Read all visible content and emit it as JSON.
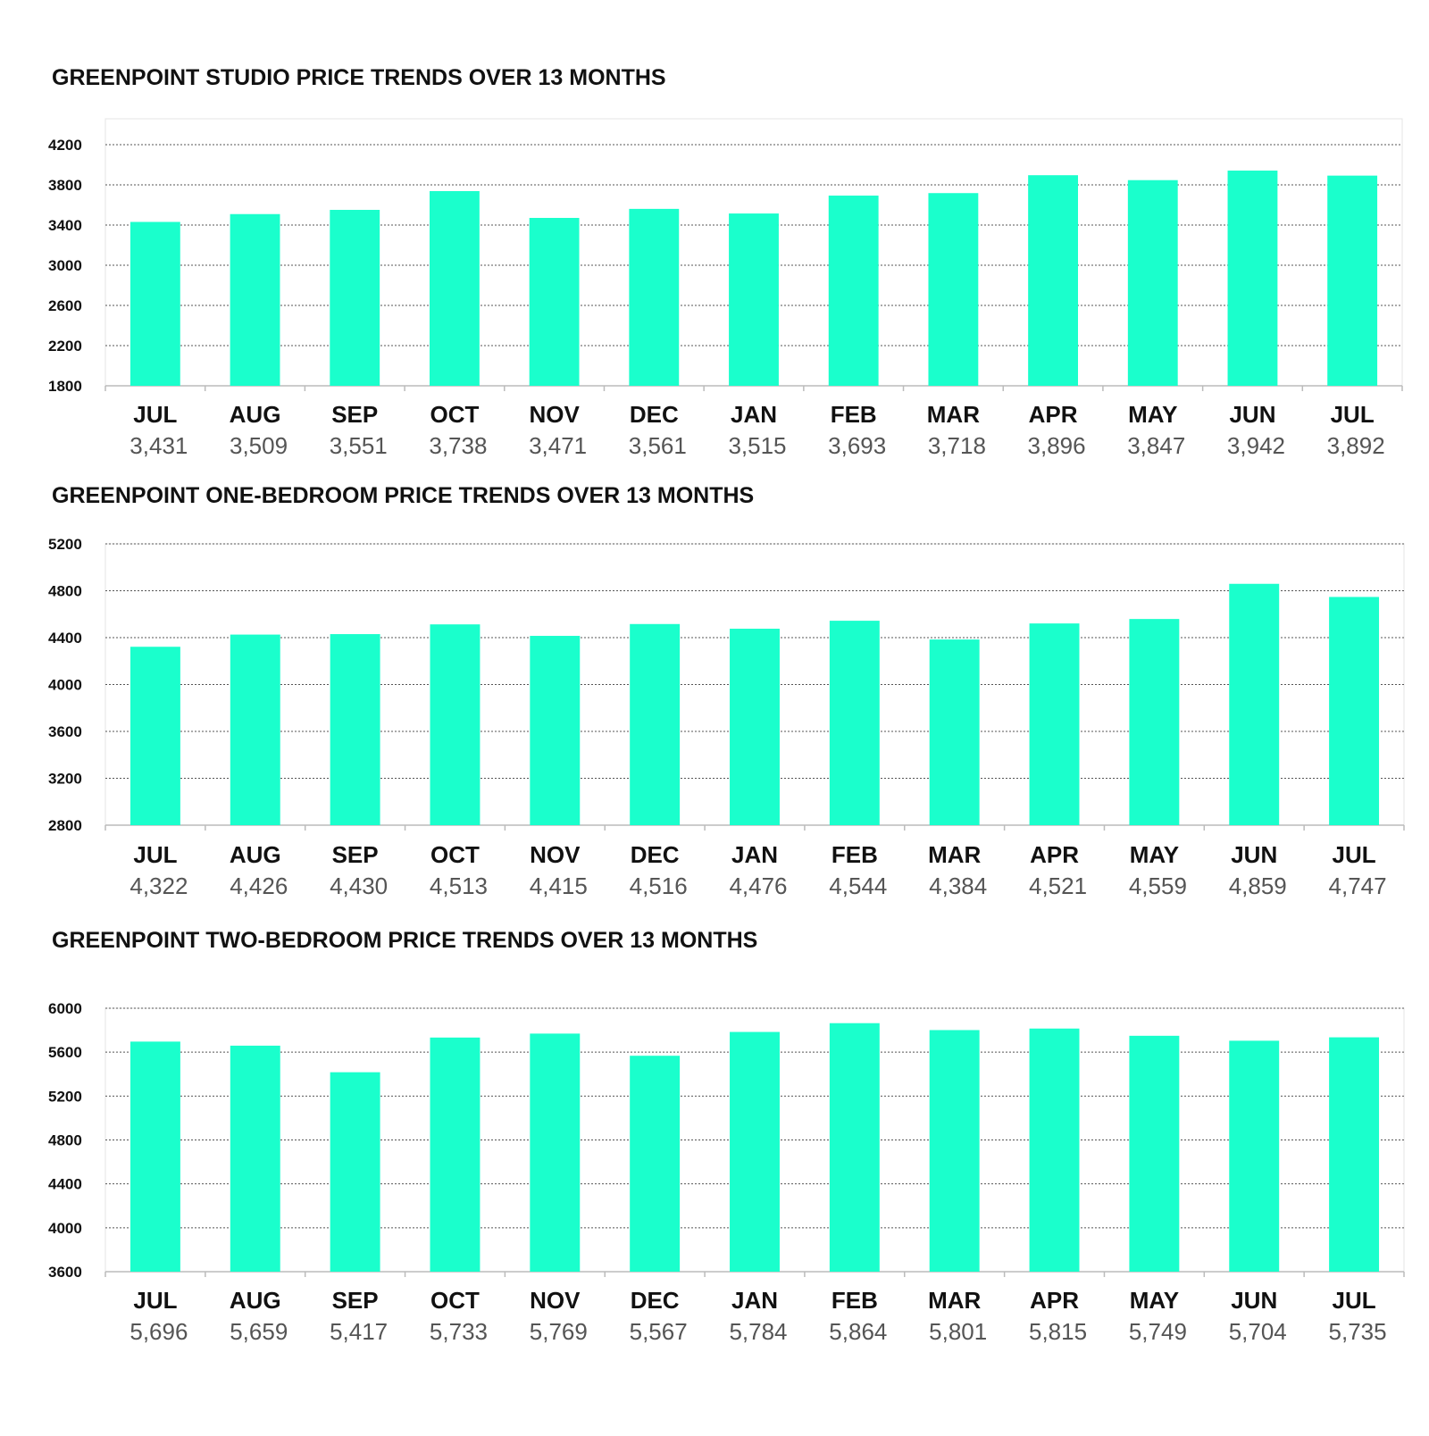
{
  "bar_color": "#1affcc",
  "grid_color": "#555555",
  "axis_color": "#bbbbbb",
  "chart_data": [
    {
      "type": "bar",
      "title": "GREENPOINT STUDIO PRICE TRENDS OVER 13 MONTHS",
      "categories": [
        "JUL",
        "AUG",
        "SEP",
        "OCT",
        "NOV",
        "DEC",
        "JAN",
        "FEB",
        "MAR",
        "APR",
        "MAY",
        "JUN",
        "JUL"
      ],
      "values": [
        3431,
        3509,
        3551,
        3738,
        3471,
        3561,
        3515,
        3693,
        3718,
        3896,
        3847,
        3942,
        3892
      ],
      "value_labels": [
        "3,431",
        "3,509",
        "3,551",
        "3,738",
        "3,471",
        "3,561",
        "3,515",
        "3,693",
        "3,718",
        "3,896",
        "3,847",
        "3,942",
        "3,892"
      ],
      "yticks": [
        1800,
        2200,
        2600,
        3000,
        3400,
        3800,
        4200
      ],
      "ylim": [
        1800,
        4200
      ],
      "grid": true
    },
    {
      "type": "bar",
      "title": "GREENPOINT ONE-BEDROOM PRICE TRENDS OVER 13 MONTHS",
      "categories": [
        "JUL",
        "AUG",
        "SEP",
        "OCT",
        "NOV",
        "DEC",
        "JAN",
        "FEB",
        "MAR",
        "APR",
        "MAY",
        "JUN",
        "JUL"
      ],
      "values": [
        4322,
        4426,
        4430,
        4513,
        4415,
        4516,
        4476,
        4544,
        4384,
        4521,
        4559,
        4859,
        4747
      ],
      "value_labels": [
        "4,322",
        "4,426",
        "4,430",
        "4,513",
        "4,415",
        "4,516",
        "4,476",
        "4,544",
        "4,384",
        "4,521",
        "4,559",
        "4,859",
        "4,747"
      ],
      "yticks": [
        2800,
        3200,
        3600,
        4000,
        4400,
        4800,
        5200
      ],
      "ylim": [
        2800,
        5200
      ],
      "grid": true
    },
    {
      "type": "bar",
      "title": "GREENPOINT TWO-BEDROOM PRICE TRENDS OVER 13 MONTHS",
      "categories": [
        "JUL",
        "AUG",
        "SEP",
        "OCT",
        "NOV",
        "DEC",
        "JAN",
        "FEB",
        "MAR",
        "APR",
        "MAY",
        "JUN",
        "JUL"
      ],
      "values": [
        5696,
        5659,
        5417,
        5733,
        5769,
        5567,
        5784,
        5864,
        5801,
        5815,
        5749,
        5704,
        5735
      ],
      "value_labels": [
        "5,696",
        "5,659",
        "5,417",
        "5,733",
        "5,769",
        "5,567",
        "5,784",
        "5,864",
        "5,801",
        "5,815",
        "5,749",
        "5,704",
        "5,735"
      ],
      "yticks": [
        3600,
        4000,
        4400,
        4800,
        5200,
        5600,
        6000
      ],
      "ylim": [
        3600,
        6000
      ],
      "grid": true
    }
  ]
}
